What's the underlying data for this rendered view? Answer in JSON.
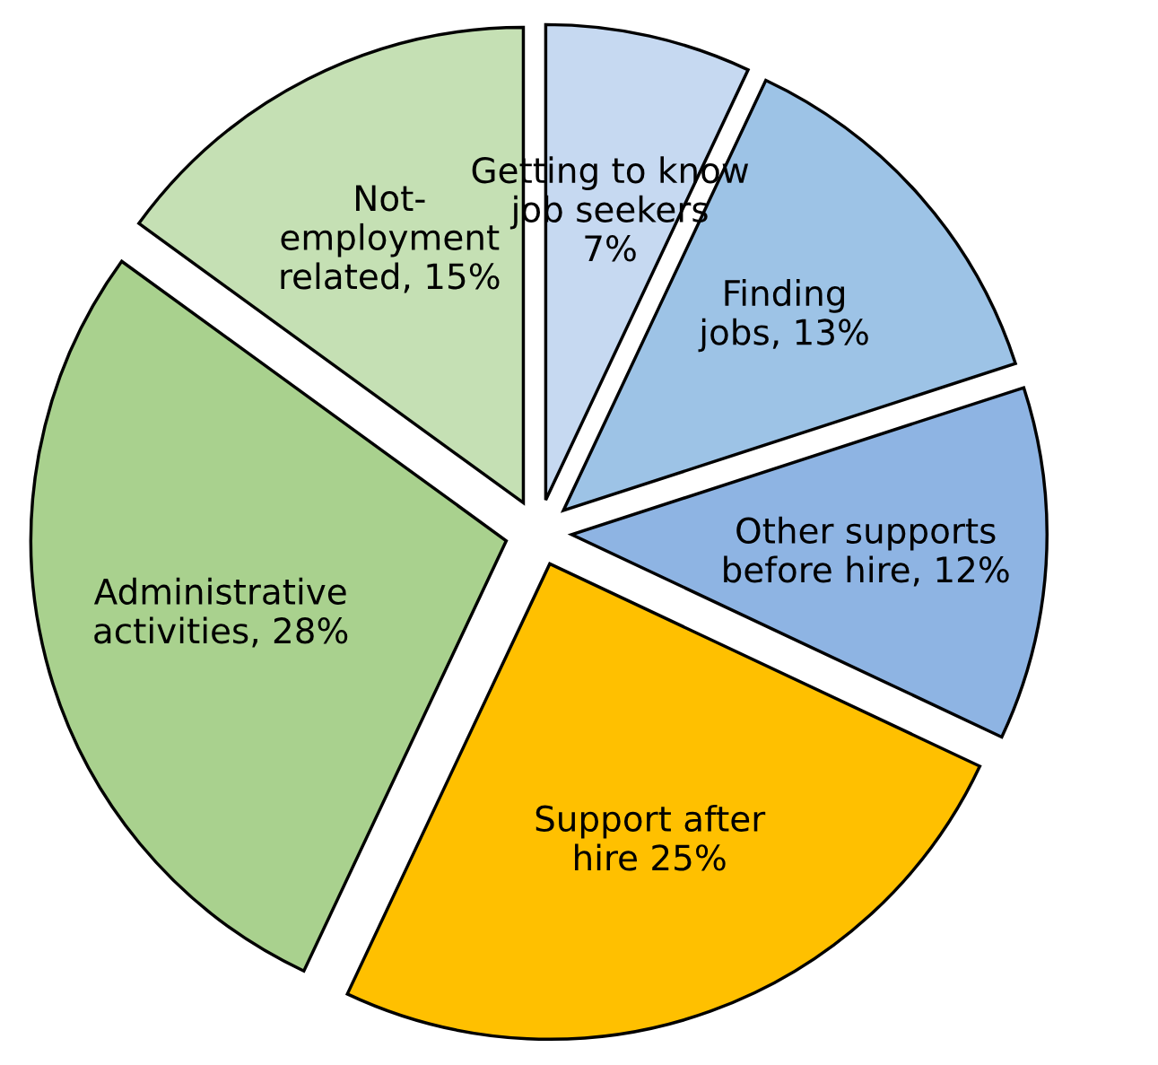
{
  "chart_data": {
    "type": "pie",
    "categories": [
      "Getting to know\njob seekers\n7%",
      "Finding\njobs, 13%",
      "Other supports\nbefore hire, 12%",
      "Support after\nhire 25%",
      "Administrative\nactivities, 28%",
      "Not-\nemployment\nrelated, 15%"
    ],
    "values": [
      7,
      13,
      12,
      25,
      28,
      15
    ],
    "colors": [
      "#c6d9f1",
      "#9dc3e6",
      "#8eb4e3",
      "#ffc000",
      "#a9d18e",
      "#c5e0b4"
    ],
    "legend": false
  }
}
